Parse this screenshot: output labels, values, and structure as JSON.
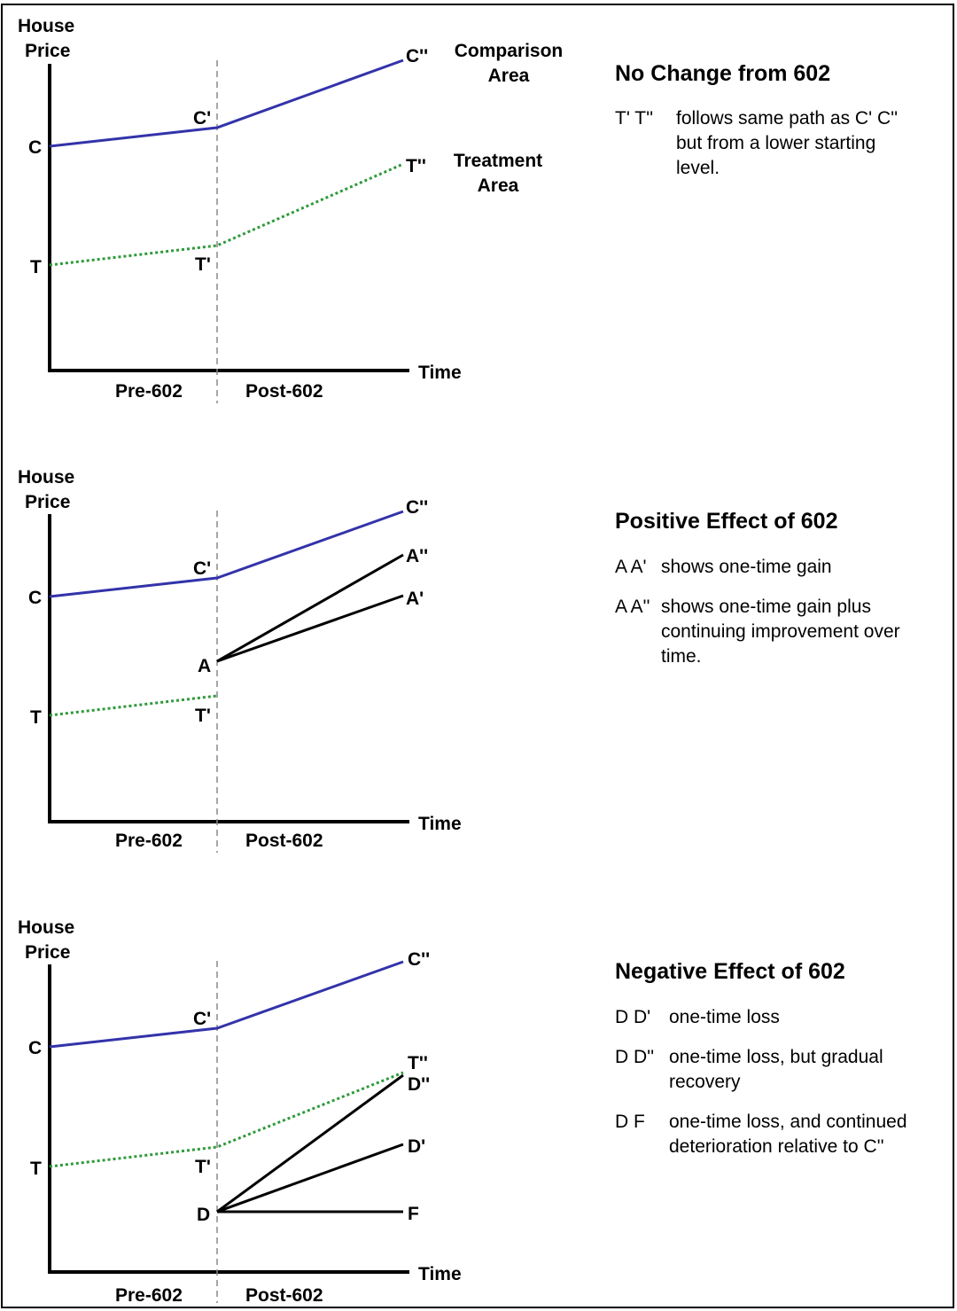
{
  "panels": [
    {
      "id": "no-change",
      "y_axis_label_line1": "House",
      "y_axis_label_line2": "Price",
      "x_axis_label": "Time",
      "pre_label": "Pre-602",
      "post_label": "Post-602",
      "points": {
        "C": "C",
        "C1": "C'",
        "C2": "C''",
        "T": "T",
        "T1": "T'",
        "T2": "T''"
      },
      "series_labels": {
        "comparison_line1": "Comparison",
        "comparison_line2": "Area",
        "treatment_line1": "Treatment",
        "treatment_line2": "Area"
      },
      "title": "No Change from 602",
      "notes": [
        {
          "key": "T' T''",
          "lines": [
            "follows same path as C' C''",
            "but from a lower starting",
            "level."
          ]
        }
      ]
    },
    {
      "id": "positive",
      "y_axis_label_line1": "House",
      "y_axis_label_line2": "Price",
      "x_axis_label": "Time",
      "pre_label": "Pre-602",
      "post_label": "Post-602",
      "points": {
        "C": "C",
        "C1": "C'",
        "C2": "C''",
        "T": "T",
        "T1": "T'",
        "A": "A",
        "A1": "A'",
        "A2": "A''"
      },
      "title": "Positive Effect of 602",
      "notes": [
        {
          "key": "A A'",
          "lines": [
            "shows one-time gain"
          ]
        },
        {
          "key": "A A''",
          "lines": [
            "shows one-time gain plus",
            "continuing improvement over",
            "time."
          ]
        }
      ]
    },
    {
      "id": "negative",
      "y_axis_label_line1": "House",
      "y_axis_label_line2": "Price",
      "x_axis_label": "Time",
      "pre_label": "Pre-602",
      "post_label": "Post-602",
      "points": {
        "C": "C",
        "C1": "C'",
        "C2": "C''",
        "T": "T",
        "T1": "T'",
        "T2": "T''",
        "D": "D",
        "D1": "D'",
        "D2": "D''",
        "F": "F"
      },
      "title": "Negative Effect of 602",
      "notes": [
        {
          "key": "D D'",
          "lines": [
            "one-time loss"
          ]
        },
        {
          "key": "D D''",
          "lines": [
            "one-time loss, but gradual",
            "recovery"
          ]
        },
        {
          "key": "D F",
          "lines": [
            "one-time loss, and continued",
            "deterioration relative to C''"
          ]
        }
      ]
    }
  ],
  "colors": {
    "comparison": "#3333aa",
    "treatment": "#2e9a3a",
    "effect": "#000000"
  }
}
